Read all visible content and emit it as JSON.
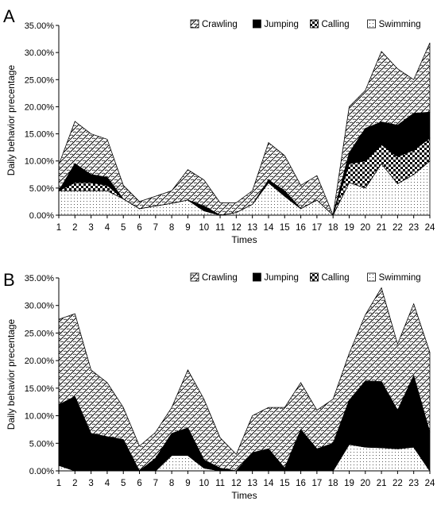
{
  "chart_data": [
    {
      "panel_label": "A",
      "type": "area",
      "stacked": true,
      "xlabel": "Times",
      "ylabel": "Daily behavior precentage",
      "ylim": [
        0,
        35
      ],
      "yticks": [
        "0.00%",
        "5.00%",
        "10.00%",
        "15.00%",
        "20.00%",
        "25.00%",
        "30.00%",
        "35.00%"
      ],
      "x": [
        1,
        2,
        3,
        4,
        5,
        6,
        7,
        8,
        9,
        10,
        11,
        12,
        13,
        14,
        15,
        16,
        17,
        18,
        19,
        20,
        21,
        22,
        23,
        24
      ],
      "legend": "top-right",
      "series": [
        {
          "name": "Swimming",
          "pattern": "dots",
          "values": [
            4.5,
            4.5,
            4.5,
            4.5,
            3,
            1.2,
            1.7,
            2.2,
            2.8,
            0.8,
            0,
            0.5,
            2,
            6,
            3.5,
            1.2,
            2.8,
            0,
            6,
            5,
            9.5,
            5.8,
            7.5,
            10
          ]
        },
        {
          "name": "Calling",
          "pattern": "checker",
          "values": [
            0,
            1.5,
            1.5,
            1,
            0,
            0,
            0,
            0,
            0,
            0,
            0,
            0,
            0,
            0,
            0,
            0,
            0,
            0,
            3.5,
            5,
            3.5,
            5,
            4.5,
            4.2
          ]
        },
        {
          "name": "Jumping",
          "pattern": "solid",
          "values": [
            0,
            3.5,
            1.5,
            1.5,
            0,
            0,
            0,
            0,
            0,
            0.9,
            0,
            0,
            0,
            0.5,
            1,
            0,
            0,
            0,
            2,
            6,
            4.2,
            5.8,
            6.8,
            4.8
          ]
        },
        {
          "name": "Crawling",
          "pattern": "crawl",
          "values": [
            4.8,
            7.8,
            7.5,
            7,
            2.5,
            1.3,
            1.8,
            2.3,
            5.6,
            4.8,
            2.3,
            1.8,
            2.5,
            6.9,
            6.5,
            4.3,
            4.5,
            0,
            8.5,
            7,
            13,
            10.4,
            6.2,
            12.8
          ]
        }
      ]
    },
    {
      "panel_label": "B",
      "type": "area",
      "stacked": true,
      "xlabel": "Times",
      "ylabel": "Daily behavior precentage",
      "ylim": [
        0,
        35
      ],
      "yticks": [
        "0.00%",
        "5.00%",
        "10.00%",
        "15.00%",
        "20.00%",
        "25.00%",
        "30.00%",
        "35.00%"
      ],
      "x": [
        1,
        2,
        3,
        4,
        5,
        6,
        7,
        8,
        9,
        10,
        11,
        12,
        13,
        14,
        15,
        16,
        17,
        18,
        19,
        20,
        21,
        22,
        23,
        24
      ],
      "legend": "top-right",
      "series": [
        {
          "name": "Swimming",
          "pattern": "dots",
          "values": [
            1,
            0,
            0,
            0,
            0,
            0,
            0,
            2.8,
            2.8,
            0.5,
            0,
            0,
            0,
            0,
            0,
            0,
            0,
            0,
            4.8,
            4.3,
            4.2,
            4,
            4.3,
            0
          ]
        },
        {
          "name": "Calling",
          "pattern": "checker",
          "values": [
            0,
            0,
            0,
            0,
            0,
            0,
            0,
            0,
            0,
            0,
            0,
            0,
            0,
            0,
            0,
            0,
            0,
            0,
            0,
            0,
            0,
            0,
            0,
            0
          ]
        },
        {
          "name": "Jumping",
          "pattern": "solid",
          "values": [
            11,
            13.5,
            6.8,
            6.2,
            5.7,
            0,
            2.3,
            4,
            5,
            1.5,
            0.5,
            0,
            3.3,
            4,
            0.5,
            7.5,
            4,
            5,
            8,
            12,
            12,
            7,
            13,
            7
          ]
        },
        {
          "name": "Crawling",
          "pattern": "crawl",
          "values": [
            15.5,
            15,
            11.5,
            9.8,
            5.8,
            4.5,
            4.7,
            4.7,
            10.5,
            11,
            5.5,
            3,
            6.7,
            7.5,
            11,
            8.5,
            7,
            8,
            8.5,
            12,
            17,
            12,
            13,
            14.5
          ]
        }
      ]
    }
  ]
}
